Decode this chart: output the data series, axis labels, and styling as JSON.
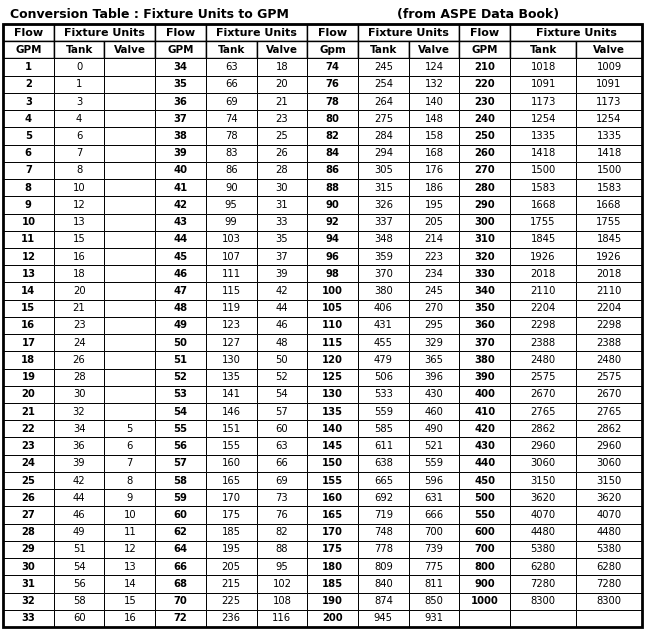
{
  "title": "Conversion Table : Fixture Units to GPM",
  "subtitle": "(from ASPE Data Book)",
  "col_headers_row2": [
    "GPM",
    "Tank",
    "Valve",
    "GPM",
    "Tank",
    "Valve",
    "Gpm",
    "Tank",
    "Valve",
    "GPM",
    "Tank",
    "Valve"
  ],
  "table_data": [
    [
      "1",
      "0",
      "",
      "34",
      "63",
      "18",
      "74",
      "245",
      "124",
      "210",
      "1018",
      "1009"
    ],
    [
      "2",
      "1",
      "",
      "35",
      "66",
      "20",
      "76",
      "254",
      "132",
      "220",
      "1091",
      "1091"
    ],
    [
      "3",
      "3",
      "",
      "36",
      "69",
      "21",
      "78",
      "264",
      "140",
      "230",
      "1173",
      "1173"
    ],
    [
      "4",
      "4",
      "",
      "37",
      "74",
      "23",
      "80",
      "275",
      "148",
      "240",
      "1254",
      "1254"
    ],
    [
      "5",
      "6",
      "",
      "38",
      "78",
      "25",
      "82",
      "284",
      "158",
      "250",
      "1335",
      "1335"
    ],
    [
      "6",
      "7",
      "",
      "39",
      "83",
      "26",
      "84",
      "294",
      "168",
      "260",
      "1418",
      "1418"
    ],
    [
      "7",
      "8",
      "",
      "40",
      "86",
      "28",
      "86",
      "305",
      "176",
      "270",
      "1500",
      "1500"
    ],
    [
      "8",
      "10",
      "",
      "41",
      "90",
      "30",
      "88",
      "315",
      "186",
      "280",
      "1583",
      "1583"
    ],
    [
      "9",
      "12",
      "",
      "42",
      "95",
      "31",
      "90",
      "326",
      "195",
      "290",
      "1668",
      "1668"
    ],
    [
      "10",
      "13",
      "",
      "43",
      "99",
      "33",
      "92",
      "337",
      "205",
      "300",
      "1755",
      "1755"
    ],
    [
      "11",
      "15",
      "",
      "44",
      "103",
      "35",
      "94",
      "348",
      "214",
      "310",
      "1845",
      "1845"
    ],
    [
      "12",
      "16",
      "",
      "45",
      "107",
      "37",
      "96",
      "359",
      "223",
      "320",
      "1926",
      "1926"
    ],
    [
      "13",
      "18",
      "",
      "46",
      "111",
      "39",
      "98",
      "370",
      "234",
      "330",
      "2018",
      "2018"
    ],
    [
      "14",
      "20",
      "",
      "47",
      "115",
      "42",
      "100",
      "380",
      "245",
      "340",
      "2110",
      "2110"
    ],
    [
      "15",
      "21",
      "",
      "48",
      "119",
      "44",
      "105",
      "406",
      "270",
      "350",
      "2204",
      "2204"
    ],
    [
      "16",
      "23",
      "",
      "49",
      "123",
      "46",
      "110",
      "431",
      "295",
      "360",
      "2298",
      "2298"
    ],
    [
      "17",
      "24",
      "",
      "50",
      "127",
      "48",
      "115",
      "455",
      "329",
      "370",
      "2388",
      "2388"
    ],
    [
      "18",
      "26",
      "",
      "51",
      "130",
      "50",
      "120",
      "479",
      "365",
      "380",
      "2480",
      "2480"
    ],
    [
      "19",
      "28",
      "",
      "52",
      "135",
      "52",
      "125",
      "506",
      "396",
      "390",
      "2575",
      "2575"
    ],
    [
      "20",
      "30",
      "",
      "53",
      "141",
      "54",
      "130",
      "533",
      "430",
      "400",
      "2670",
      "2670"
    ],
    [
      "21",
      "32",
      "",
      "54",
      "146",
      "57",
      "135",
      "559",
      "460",
      "410",
      "2765",
      "2765"
    ],
    [
      "22",
      "34",
      "5",
      "55",
      "151",
      "60",
      "140",
      "585",
      "490",
      "420",
      "2862",
      "2862"
    ],
    [
      "23",
      "36",
      "6",
      "56",
      "155",
      "63",
      "145",
      "611",
      "521",
      "430",
      "2960",
      "2960"
    ],
    [
      "24",
      "39",
      "7",
      "57",
      "160",
      "66",
      "150",
      "638",
      "559",
      "440",
      "3060",
      "3060"
    ],
    [
      "25",
      "42",
      "8",
      "58",
      "165",
      "69",
      "155",
      "665",
      "596",
      "450",
      "3150",
      "3150"
    ],
    [
      "26",
      "44",
      "9",
      "59",
      "170",
      "73",
      "160",
      "692",
      "631",
      "500",
      "3620",
      "3620"
    ],
    [
      "27",
      "46",
      "10",
      "60",
      "175",
      "76",
      "165",
      "719",
      "666",
      "550",
      "4070",
      "4070"
    ],
    [
      "28",
      "49",
      "11",
      "62",
      "185",
      "82",
      "170",
      "748",
      "700",
      "600",
      "4480",
      "4480"
    ],
    [
      "29",
      "51",
      "12",
      "64",
      "195",
      "88",
      "175",
      "778",
      "739",
      "700",
      "5380",
      "5380"
    ],
    [
      "30",
      "54",
      "13",
      "66",
      "205",
      "95",
      "180",
      "809",
      "775",
      "800",
      "6280",
      "6280"
    ],
    [
      "31",
      "56",
      "14",
      "68",
      "215",
      "102",
      "185",
      "840",
      "811",
      "900",
      "7280",
      "7280"
    ],
    [
      "32",
      "58",
      "15",
      "70",
      "225",
      "108",
      "190",
      "874",
      "850",
      "1000",
      "8300",
      "8300"
    ],
    [
      "33",
      "60",
      "16",
      "72",
      "236",
      "116",
      "200",
      "945",
      "931",
      "",
      "",
      ""
    ]
  ],
  "bg_color": "#ffffff",
  "border_color": "#000000",
  "text_color": "#000000",
  "bold_col_indices": [
    0,
    3,
    6,
    9
  ],
  "figwidth": 6.45,
  "figheight": 6.3,
  "dpi": 100
}
